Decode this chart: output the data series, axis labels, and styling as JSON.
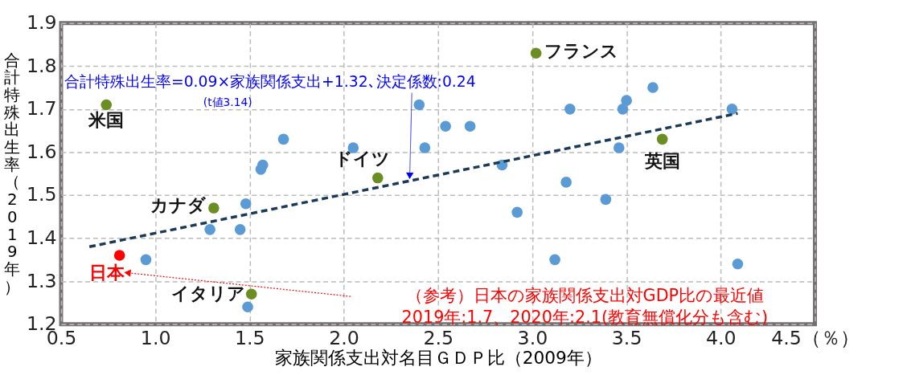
{
  "chart_data": {
    "type": "scatter",
    "xlabel": "家族関係支出対名目ＧＤＰ比（2009年）",
    "ylabel": "合計特殊出生率（2019年）",
    "xlim": [
      0.5,
      4.5
    ],
    "ylim": [
      1.2,
      1.9
    ],
    "xticks": [
      {
        "value": 0.5,
        "label": "0.5"
      },
      {
        "value": 1,
        "label": "1.0"
      },
      {
        "value": 1.5,
        "label": "1.5"
      },
      {
        "value": 2,
        "label": "2.0"
      },
      {
        "value": 2.5,
        "label": "2.5"
      },
      {
        "value": 3,
        "label": "3.0"
      },
      {
        "value": 3.5,
        "label": "3.5"
      },
      {
        "value": 4,
        "label": "4.0"
      },
      {
        "value": 4.5,
        "label": "4.5（％）"
      }
    ],
    "yticks": [
      1.2,
      1.3,
      1.4,
      1.5,
      1.6,
      1.7,
      1.8,
      1.9
    ],
    "grid": true,
    "marker": "circle",
    "series": [
      {
        "color": "#5b9bd5",
        "x": [
          0.95,
          1.29,
          1.45,
          1.48,
          1.49,
          1.56,
          1.57,
          1.68,
          2.05,
          2.4,
          2.43,
          2.54,
          2.67,
          2.84,
          2.92,
          3.12,
          3.18,
          3.2,
          3.39,
          3.46,
          3.48,
          3.5,
          3.64,
          4.06,
          4.09
        ],
        "values": [
          1.35,
          1.42,
          1.42,
          1.48,
          1.24,
          1.56,
          1.57,
          1.63,
          1.61,
          1.71,
          1.61,
          1.66,
          1.66,
          1.57,
          1.46,
          1.35,
          1.53,
          1.7,
          1.49,
          1.61,
          1.7,
          1.72,
          1.75,
          1.7,
          1.34
        ]
      },
      {
        "color": "#6b8e23",
        "x": [
          0.74,
          3.02,
          2.18,
          3.69,
          1.31,
          1.51
        ],
        "values": [
          1.71,
          1.83,
          1.54,
          1.63,
          1.47,
          1.27
        ]
      },
      {
        "color": "#ff0000",
        "x": [
          0.81
        ],
        "values": [
          1.36
        ]
      },
      {
        "type": "line",
        "color": "#1b3a57",
        "line_style": "dashed",
        "marker": "none",
        "x": [
          0.65,
          4.09
        ],
        "values": [
          1.38,
          1.69
        ]
      }
    ],
    "annotations": [
      {
        "text": "合計特殊出生率=0.09×家族関係支出+1.32､決定係数:0.24",
        "x": 2.35,
        "y": 1.53
      },
      "(t値3.14)",
      "（参考）日本の家族関係支出対GDP比の最近値\n2019年:1.7、2020年:2.1(教育無償化分も含む)",
      {
        "text": "米国",
        "x": 0.74,
        "y": 1.71
      },
      {
        "text": "フランス",
        "x": 3.02,
        "y": 1.83
      },
      {
        "text": "ドイツ",
        "x": 2.18,
        "y": 1.54
      },
      {
        "text": "英国",
        "x": 3.69,
        "y": 1.63
      },
      {
        "text": "カナダ",
        "x": 1.31,
        "y": 1.47
      },
      {
        "text": "イタリア",
        "x": 1.51,
        "y": 1.27
      },
      {
        "text": "日本",
        "x": 0.81,
        "y": 1.36
      }
    ]
  }
}
